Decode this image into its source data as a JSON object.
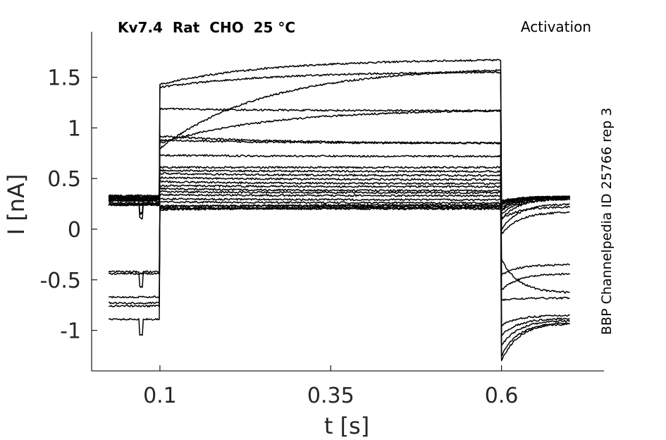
{
  "header": {
    "title_left": "Kv7.4  Rat  CHO  25 °C",
    "title_right": "Activation",
    "side_label": "BBP Channelpedia ID 25766 rep 3"
  },
  "chart_data": {
    "type": "line",
    "xlabel": "t [s]",
    "ylabel": "I [nA]",
    "xlim": [
      0.0,
      0.75
    ],
    "ylim": [
      -1.4,
      1.95
    ],
    "x_ticks": [
      0.1,
      0.35,
      0.6
    ],
    "x_tick_labels": [
      "0.1",
      "0.35",
      "0.6"
    ],
    "y_ticks": [
      -1,
      -0.5,
      0,
      0.5,
      1,
      1.5
    ],
    "y_tick_labels": [
      "-1",
      "-0.5",
      "0",
      "0.5",
      "1",
      "1.5"
    ],
    "grid": false,
    "line_color": "#000000",
    "step_on": 0.1,
    "step_off": 0.6,
    "x_start": 0.025,
    "x_end": 0.7,
    "traces": [
      {
        "hold": 0.33,
        "step_start": 1.43,
        "step_end": 1.67,
        "tail_peak": 0.28,
        "tail_end": 0.32
      },
      {
        "hold": 0.3,
        "step_start": 1.4,
        "step_end": 1.55,
        "tail_peak": 0.26,
        "tail_end": 0.3
      },
      {
        "hold": 0.32,
        "step_start": 0.8,
        "step_end": 1.57,
        "tail_peak": 0.1,
        "tail_end": 0.22
      },
      {
        "hold": 0.31,
        "step_start": 0.85,
        "step_end": 1.17,
        "tail_peak": -0.05,
        "tail_end": 0.17
      },
      {
        "hold": 0.32,
        "step_start": 1.19,
        "step_end": 1.17,
        "tail_peak": 0.0,
        "tail_end": 0.25
      },
      {
        "hold": 0.33,
        "step_start": 0.92,
        "step_end": 0.85,
        "tail_peak": -0.45,
        "tail_end": -0.35
      },
      {
        "hold": 0.31,
        "step_start": 0.88,
        "step_end": 0.85,
        "tail_peak": -0.6,
        "tail_end": -0.44
      },
      {
        "hold": 0.31,
        "step_start": 0.73,
        "step_end": 0.72,
        "tail_peak": -0.3,
        "tail_end": -0.63
      },
      {
        "hold": 0.3,
        "step_start": 0.61,
        "step_end": 0.61,
        "tail_peak": -0.7,
        "tail_end": -0.68
      },
      {
        "hold": 0.29,
        "step_start": 0.58,
        "step_end": 0.57,
        "tail_peak": -0.95,
        "tail_end": -0.85
      },
      {
        "hold": 0.29,
        "step_start": 0.55,
        "step_end": 0.53,
        "tail_peak": -1.05,
        "tail_end": -0.88
      },
      {
        "hold": 0.28,
        "step_start": 0.51,
        "step_end": 0.49,
        "tail_peak": -1.15,
        "tail_end": -0.9
      },
      {
        "hold": 0.28,
        "step_start": 0.47,
        "step_end": 0.45,
        "tail_peak": -1.25,
        "tail_end": -0.92
      },
      {
        "hold": 0.26,
        "step_start": 0.43,
        "step_end": 0.42,
        "tail_peak": -1.3,
        "tail_end": -0.93
      },
      {
        "hold": 0.25,
        "step_start": 0.4,
        "step_end": 0.38,
        "tail_peak": 0.1,
        "tail_end": 0.3
      },
      {
        "hold": 0.25,
        "step_start": 0.37,
        "step_end": 0.36,
        "tail_peak": 0.15,
        "tail_end": 0.3
      },
      {
        "hold": 0.24,
        "step_start": 0.34,
        "step_end": 0.33,
        "tail_peak": 0.18,
        "tail_end": 0.31
      },
      {
        "hold": 0.24,
        "step_start": 0.3,
        "step_end": 0.29,
        "tail_peak": 0.2,
        "tail_end": 0.31
      },
      {
        "hold": -0.42,
        "step_start": 0.27,
        "step_end": 0.26,
        "tail_peak": 0.22,
        "tail_end": 0.31
      },
      {
        "hold": -0.44,
        "step_start": 0.23,
        "step_end": 0.23,
        "tail_peak": 0.24,
        "tail_end": 0.32
      },
      {
        "hold": -0.67,
        "step_start": 0.21,
        "step_end": 0.2,
        "tail_peak": 0.25,
        "tail_end": 0.32
      },
      {
        "hold": -0.73,
        "step_start": 0.2,
        "step_end": 0.22,
        "tail_peak": 0.26,
        "tail_end": 0.32
      },
      {
        "hold": -0.76,
        "step_start": 0.19,
        "step_end": 0.21,
        "tail_peak": 0.27,
        "tail_end": 0.32
      },
      {
        "hold": -0.89,
        "step_start": 0.22,
        "step_end": 0.24,
        "tail_peak": 0.28,
        "tail_end": 0.32
      }
    ]
  }
}
